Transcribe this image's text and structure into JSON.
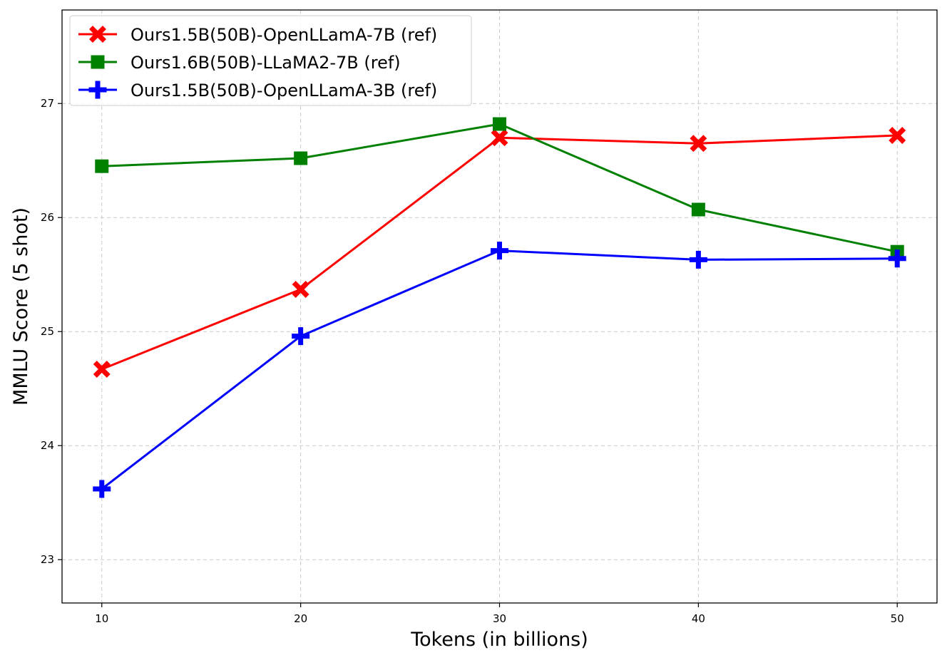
{
  "chart_data": {
    "type": "line",
    "title": "",
    "xlabel": "Tokens (in billions)",
    "ylabel": "MMLU Score (5 shot)",
    "x": [
      10,
      20,
      30,
      40,
      50
    ],
    "xticks": [
      "10",
      "20",
      "30",
      "40",
      "50"
    ],
    "yticks": [
      "23",
      "24",
      "25",
      "26",
      "27"
    ],
    "xlim": [
      8,
      52
    ],
    "ylim": [
      22.62,
      27.82
    ],
    "grid": true,
    "legend_position": "top-left",
    "series": [
      {
        "name": "Ours1.5B(50B)-OpenLLamA-7B (ref)",
        "color": "#ff0000",
        "marker": "x-icon",
        "values": [
          24.67,
          25.37,
          26.7,
          26.65,
          26.72
        ]
      },
      {
        "name": "Ours1.6B(50B)-LLaMA2-7B (ref)",
        "color": "#008000",
        "marker": "square-icon",
        "values": [
          26.45,
          26.52,
          26.82,
          26.07,
          25.7
        ]
      },
      {
        "name": "Ours1.5B(50B)-OpenLLamA-3B (ref)",
        "color": "#0000ff",
        "marker": "plus-icon",
        "values": [
          23.62,
          24.96,
          25.71,
          25.63,
          25.64
        ]
      }
    ]
  }
}
